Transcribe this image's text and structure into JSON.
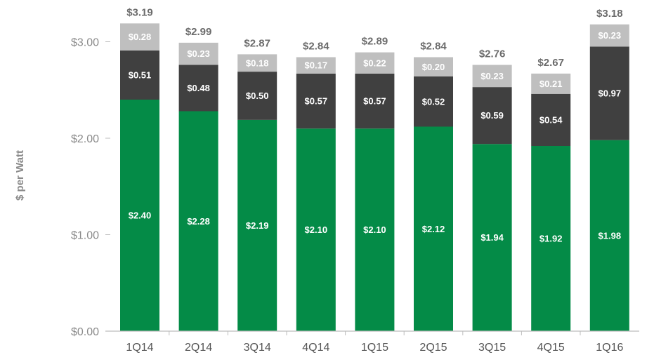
{
  "chart_data": {
    "type": "bar",
    "stacked": true,
    "title": "",
    "xlabel": "",
    "ylabel": "$ per Watt",
    "ylim": [
      0,
      3.0
    ],
    "yticks": [
      "$0.00",
      "$1.00",
      "$2.00",
      "$3.00"
    ],
    "grid": false,
    "categories": [
      "1Q14",
      "2Q14",
      "3Q14",
      "4Q14",
      "1Q15",
      "2Q15",
      "3Q15",
      "4Q15",
      "1Q16"
    ],
    "series": [
      {
        "values": [
          2.4,
          2.28,
          2.19,
          2.1,
          2.1,
          2.12,
          1.94,
          1.92,
          1.98
        ],
        "labels": [
          "$2.40",
          "$2.28",
          "$2.19",
          "$2.10",
          "$2.10",
          "$2.12",
          "$1.94",
          "$1.92",
          "$1.98"
        ],
        "color": "#048b47"
      },
      {
        "values": [
          0.51,
          0.48,
          0.5,
          0.57,
          0.57,
          0.52,
          0.59,
          0.54,
          0.97
        ],
        "labels": [
          "$0.51",
          "$0.48",
          "$0.50",
          "$0.57",
          "$0.57",
          "$0.52",
          "$0.59",
          "$0.54",
          "$0.97"
        ],
        "color": "#404040"
      },
      {
        "values": [
          0.28,
          0.23,
          0.18,
          0.17,
          0.22,
          0.2,
          0.23,
          0.21,
          0.23
        ],
        "labels": [
          "$0.28",
          "$0.23",
          "$0.18",
          "$0.17",
          "$0.22",
          "$0.20",
          "$0.23",
          "$0.21",
          "$0.23"
        ],
        "color": "#bfbfbf"
      }
    ],
    "totals": [
      3.19,
      2.99,
      2.87,
      2.84,
      2.89,
      2.84,
      2.76,
      2.67,
      3.18
    ],
    "total_labels": [
      "$3.19",
      "$2.99",
      "$2.87",
      "$2.84",
      "$2.89",
      "$2.84",
      "$2.76",
      "$2.67",
      "$3.18"
    ]
  }
}
